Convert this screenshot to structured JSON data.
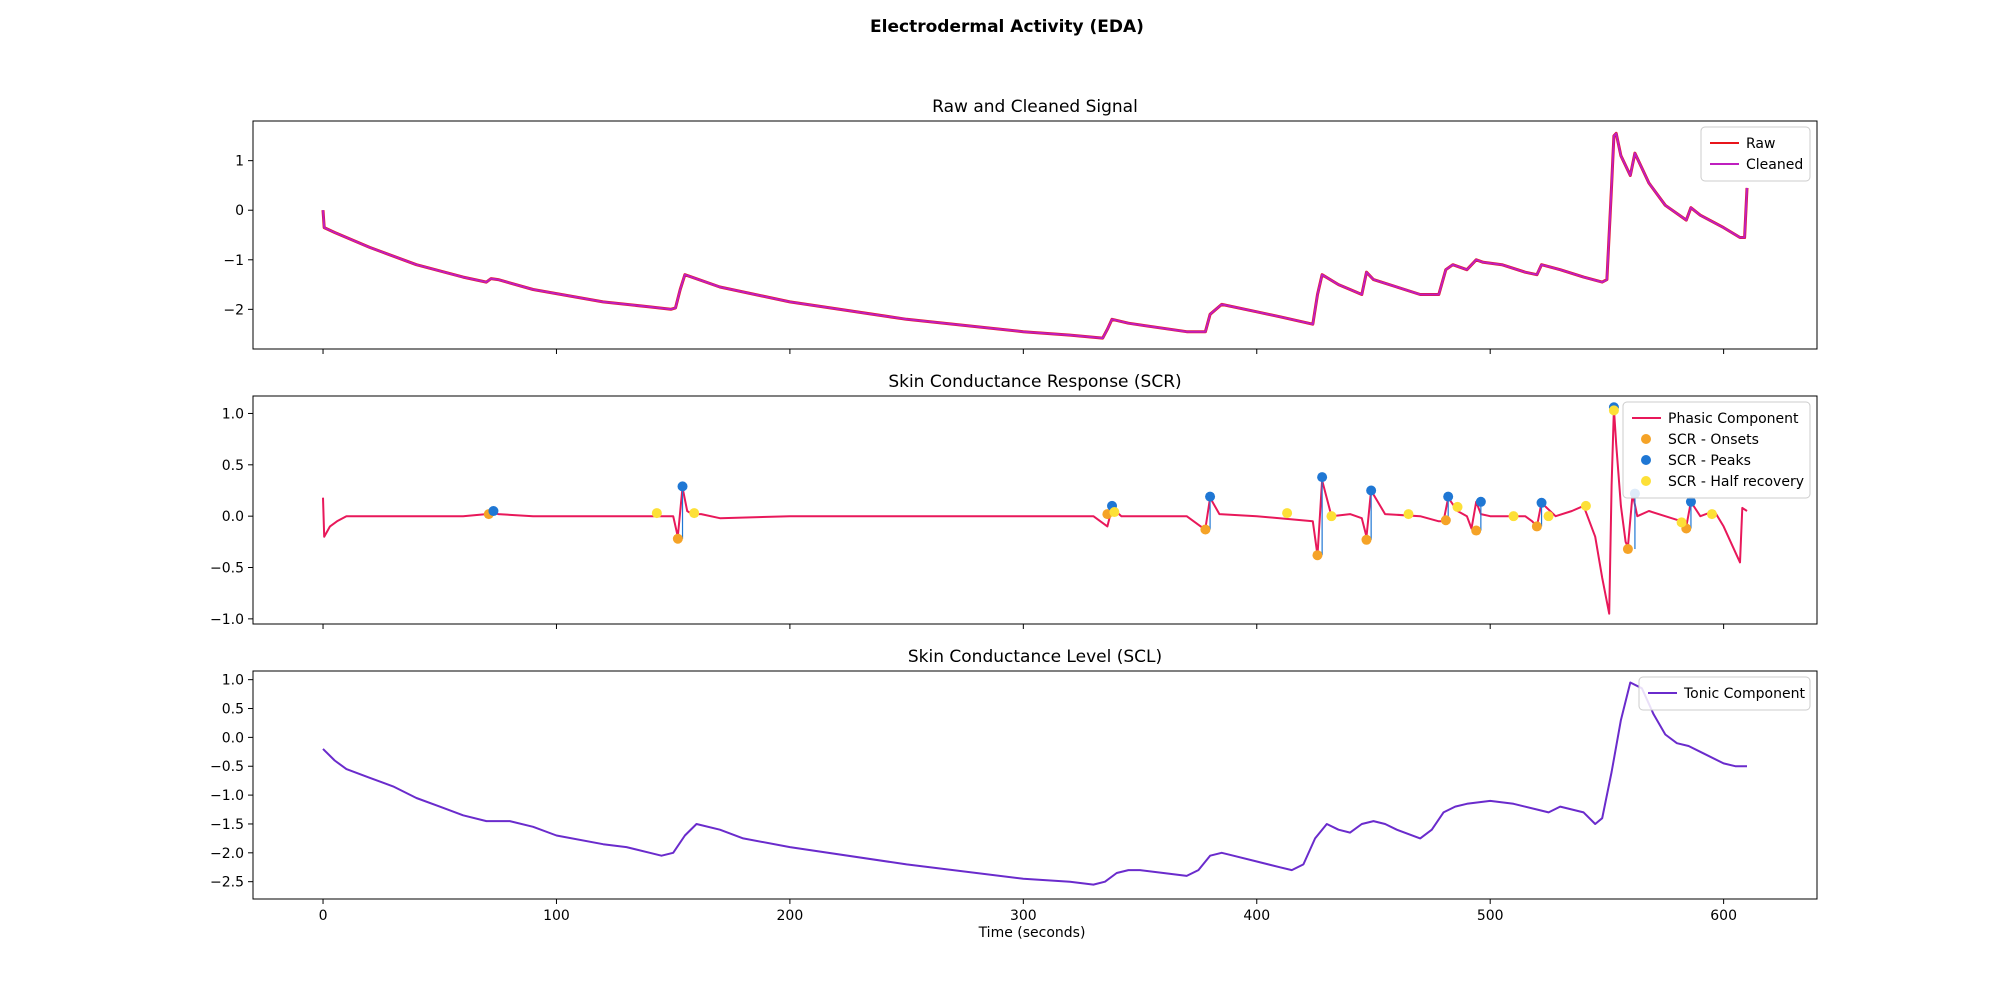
{
  "figure": {
    "title": "Electrodermal Activity (EDA)",
    "xlabel": "Time (seconds)"
  },
  "chart_data": [
    {
      "type": "line",
      "title": "Raw and Cleaned Signal",
      "xlim": [
        -30,
        640
      ],
      "ylim": [
        -2.8,
        1.8
      ],
      "xticks": [
        0,
        100,
        200,
        300,
        400,
        500,
        600
      ],
      "yticks": [
        1,
        0,
        -1,
        -2
      ],
      "ytick_labels": [
        "1",
        "0",
        "−1",
        "−2"
      ],
      "legend": "top-right",
      "series": [
        {
          "name": "Raw",
          "color": "#e8151b",
          "x": [
            0,
            0.5,
            5,
            20,
            40,
            60,
            70,
            72,
            75,
            90,
            120,
            140,
            149,
            151,
            153,
            155,
            170,
            200,
            250,
            300,
            320,
            334,
            336,
            338,
            345,
            370,
            378,
            380,
            385,
            400,
            410,
            424,
            426,
            428,
            435,
            440,
            445,
            447,
            450,
            460,
            470,
            478,
            481,
            484,
            490,
            494,
            497,
            505,
            515,
            520,
            522,
            530,
            540,
            548,
            550,
            552,
            553,
            554,
            556,
            560,
            562,
            568,
            575,
            584,
            586,
            590,
            600,
            607,
            609,
            610
          ],
          "y": [
            0.0,
            -0.35,
            -0.45,
            -0.75,
            -1.1,
            -1.35,
            -1.45,
            -1.38,
            -1.4,
            -1.6,
            -1.85,
            -1.95,
            -2.0,
            -1.97,
            -1.6,
            -1.3,
            -1.55,
            -1.85,
            -2.2,
            -2.45,
            -2.52,
            -2.58,
            -2.4,
            -2.2,
            -2.28,
            -2.45,
            -2.45,
            -2.1,
            -1.9,
            -2.05,
            -2.15,
            -2.3,
            -1.7,
            -1.3,
            -1.5,
            -1.6,
            -1.7,
            -1.25,
            -1.4,
            -1.55,
            -1.7,
            -1.7,
            -1.2,
            -1.1,
            -1.2,
            -1.0,
            -1.05,
            -1.1,
            -1.25,
            -1.3,
            -1.1,
            -1.2,
            -1.35,
            -1.45,
            -1.4,
            0.5,
            1.5,
            1.55,
            1.1,
            0.7,
            1.15,
            0.55,
            0.1,
            -0.2,
            0.05,
            -0.1,
            -0.35,
            -0.55,
            -0.55,
            0.45
          ]
        },
        {
          "name": "Cleaned",
          "color": "#bf1fbf",
          "x": [
            0,
            0.5,
            5,
            20,
            40,
            60,
            70,
            72,
            75,
            90,
            120,
            140,
            149,
            151,
            153,
            155,
            170,
            200,
            250,
            300,
            320,
            334,
            336,
            338,
            345,
            370,
            378,
            380,
            385,
            400,
            410,
            424,
            426,
            428,
            435,
            440,
            445,
            447,
            450,
            460,
            470,
            478,
            481,
            484,
            490,
            494,
            497,
            505,
            515,
            520,
            522,
            530,
            540,
            548,
            550,
            552,
            553,
            554,
            556,
            560,
            562,
            568,
            575,
            584,
            586,
            590,
            600,
            607,
            609,
            610
          ],
          "y": [
            0.0,
            -0.35,
            -0.45,
            -0.75,
            -1.1,
            -1.35,
            -1.45,
            -1.38,
            -1.4,
            -1.6,
            -1.85,
            -1.95,
            -2.0,
            -1.97,
            -1.6,
            -1.3,
            -1.55,
            -1.85,
            -2.2,
            -2.45,
            -2.52,
            -2.58,
            -2.4,
            -2.2,
            -2.28,
            -2.45,
            -2.45,
            -2.1,
            -1.9,
            -2.05,
            -2.15,
            -2.3,
            -1.7,
            -1.3,
            -1.5,
            -1.6,
            -1.7,
            -1.25,
            -1.4,
            -1.55,
            -1.7,
            -1.7,
            -1.2,
            -1.1,
            -1.2,
            -1.0,
            -1.05,
            -1.1,
            -1.25,
            -1.3,
            -1.1,
            -1.2,
            -1.35,
            -1.45,
            -1.4,
            0.5,
            1.5,
            1.55,
            1.1,
            0.7,
            1.15,
            0.55,
            0.1,
            -0.2,
            0.05,
            -0.1,
            -0.35,
            -0.55,
            -0.55,
            0.45
          ]
        }
      ]
    },
    {
      "type": "line",
      "title": "Skin Conductance Response (SCR)",
      "xlim": [
        -30,
        640
      ],
      "ylim": [
        -1.05,
        1.17
      ],
      "xticks": [
        0,
        100,
        200,
        300,
        400,
        500,
        600
      ],
      "yticks": [
        1.0,
        0.5,
        0.0,
        -0.5,
        -1.0
      ],
      "ytick_labels": [
        "1.0",
        "0.5",
        "0.0",
        "−0.5",
        "−1.0"
      ],
      "legend": "top-right",
      "series": [
        {
          "name": "Phasic Component",
          "color": "#e8185a",
          "x": [
            0,
            0.5,
            3,
            6,
            10,
            20,
            60,
            70,
            72,
            75,
            90,
            140,
            150,
            152,
            154,
            156,
            158,
            162,
            170,
            200,
            300,
            330,
            336,
            338,
            342,
            350,
            370,
            376,
            378,
            380,
            384,
            400,
            424,
            426,
            428,
            432,
            440,
            445,
            447,
            449,
            455,
            470,
            478,
            480,
            482,
            486,
            490,
            492,
            494,
            496,
            500,
            515,
            518,
            520,
            522,
            528,
            535,
            540,
            545,
            548,
            551,
            552,
            553,
            554,
            556,
            558,
            559,
            561,
            563,
            568,
            575,
            582,
            584,
            586,
            590,
            596,
            600,
            606,
            607,
            608,
            610
          ],
          "y": [
            0.18,
            -0.2,
            -0.1,
            -0.05,
            0.0,
            0.0,
            0.0,
            0.02,
            0.05,
            0.02,
            0.0,
            0.0,
            0.0,
            -0.2,
            0.28,
            0.05,
            0.02,
            0.02,
            -0.02,
            0.0,
            0.0,
            0.0,
            -0.1,
            0.08,
            0.0,
            0.0,
            0.0,
            -0.1,
            -0.12,
            0.18,
            0.02,
            0.0,
            -0.05,
            -0.38,
            0.35,
            0.0,
            0.02,
            -0.02,
            -0.2,
            0.25,
            0.02,
            0.0,
            -0.05,
            -0.05,
            0.18,
            0.05,
            0.0,
            -0.12,
            0.14,
            0.02,
            0.0,
            0.0,
            -0.05,
            -0.1,
            0.13,
            0.0,
            0.05,
            0.1,
            -0.2,
            -0.6,
            -0.95,
            0.3,
            1.05,
            0.7,
            0.1,
            -0.25,
            -0.3,
            0.22,
            0.0,
            0.05,
            0.0,
            -0.05,
            -0.1,
            0.14,
            0.0,
            0.05,
            -0.1,
            -0.4,
            -0.45,
            0.08,
            0.05
          ]
        }
      ],
      "markers": [
        {
          "name": "SCR - Onsets",
          "color": "#f5a327",
          "x": [
            71,
            152,
            336,
            378,
            426,
            447,
            481,
            494,
            520,
            559,
            584
          ],
          "y": [
            0.02,
            -0.22,
            0.02,
            -0.13,
            -0.38,
            -0.23,
            -0.04,
            -0.14,
            -0.1,
            -0.32,
            -0.12
          ]
        },
        {
          "name": "SCR - Peaks",
          "color": "#1f77d4",
          "x": [
            73,
            154,
            338,
            380,
            428,
            449,
            482,
            496,
            522,
            553,
            562,
            586
          ],
          "y": [
            0.05,
            0.29,
            0.1,
            0.19,
            0.38,
            0.25,
            0.19,
            0.14,
            0.13,
            1.06,
            0.22,
            0.14
          ]
        },
        {
          "name": "SCR - Half recovery",
          "color": "#fde037",
          "x": [
            143,
            159,
            339,
            413,
            432,
            465,
            486,
            510,
            525,
            541,
            553,
            582,
            595
          ],
          "y": [
            0.03,
            0.03,
            0.04,
            0.03,
            0.0,
            0.02,
            0.09,
            0.0,
            0.0,
            0.1,
            1.03,
            -0.06,
            0.02
          ]
        }
      ]
    },
    {
      "type": "line",
      "title": "Skin Conductance Level (SCL)",
      "xlim": [
        -30,
        640
      ],
      "ylim": [
        -2.8,
        1.15
      ],
      "xticks": [
        0,
        100,
        200,
        300,
        400,
        500,
        600
      ],
      "yticks": [
        1.0,
        0.5,
        0.0,
        -0.5,
        -1.0,
        -1.5,
        -2.0,
        -2.5
      ],
      "ytick_labels": [
        "1.0",
        "0.5",
        "0.0",
        "−0.5",
        "−1.0",
        "−1.5",
        "−2.0",
        "−2.5"
      ],
      "legend": "top-right",
      "series": [
        {
          "name": "Tonic Component",
          "color": "#6a2bcc",
          "x": [
            0,
            5,
            10,
            20,
            30,
            40,
            50,
            60,
            70,
            80,
            90,
            100,
            120,
            130,
            140,
            145,
            150,
            155,
            160,
            170,
            180,
            200,
            250,
            300,
            320,
            330,
            335,
            340,
            345,
            350,
            360,
            370,
            375,
            380,
            385,
            390,
            400,
            410,
            415,
            420,
            425,
            430,
            435,
            440,
            445,
            450,
            455,
            460,
            470,
            475,
            480,
            485,
            490,
            500,
            510,
            520,
            525,
            530,
            540,
            545,
            548,
            552,
            556,
            560,
            565,
            570,
            575,
            580,
            585,
            590,
            600,
            605,
            610
          ],
          "y": [
            -0.2,
            -0.4,
            -0.55,
            -0.7,
            -0.85,
            -1.05,
            -1.2,
            -1.35,
            -1.45,
            -1.45,
            -1.55,
            -1.7,
            -1.85,
            -1.9,
            -2.0,
            -2.05,
            -2.0,
            -1.7,
            -1.5,
            -1.6,
            -1.75,
            -1.9,
            -2.2,
            -2.45,
            -2.5,
            -2.55,
            -2.5,
            -2.35,
            -2.3,
            -2.3,
            -2.35,
            -2.4,
            -2.3,
            -2.05,
            -2.0,
            -2.05,
            -2.15,
            -2.25,
            -2.3,
            -2.2,
            -1.75,
            -1.5,
            -1.6,
            -1.65,
            -1.5,
            -1.45,
            -1.5,
            -1.6,
            -1.75,
            -1.6,
            -1.3,
            -1.2,
            -1.15,
            -1.1,
            -1.15,
            -1.25,
            -1.3,
            -1.2,
            -1.3,
            -1.5,
            -1.4,
            -0.6,
            0.3,
            0.95,
            0.85,
            0.4,
            0.05,
            -0.1,
            -0.15,
            -0.25,
            -0.45,
            -0.5,
            -0.5
          ]
        }
      ]
    }
  ]
}
